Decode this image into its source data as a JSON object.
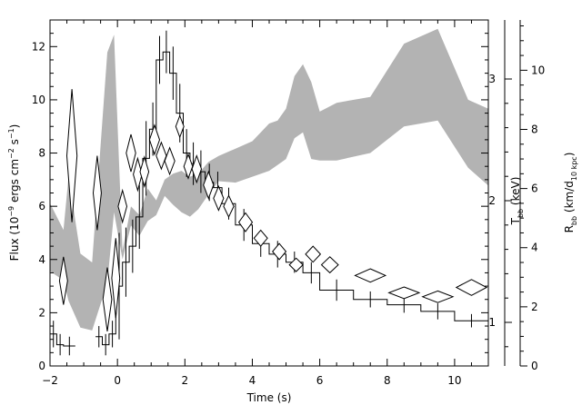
{
  "chart_data": {
    "type": "line",
    "title": "",
    "xlabel": "Time (s)",
    "xlim": [
      -2,
      11
    ],
    "axes": {
      "flux": {
        "label": "Flux (10-9 ergs cm-2 s-1)",
        "label_main": "Flux (10",
        "label_exp1": "−9",
        "label_mid": " ergs cm",
        "label_exp2": "−2",
        "label_s": " s",
        "label_exp3": "−1",
        "label_end": ")",
        "lim": [
          0,
          13
        ],
        "ticks": [
          "0",
          "2",
          "4",
          "6",
          "8",
          "10",
          "12"
        ]
      },
      "temperature": {
        "label": "Tbb (keV)",
        "label_main": "T",
        "label_sub": "bb",
        "label_end": " (keV)",
        "ticks": [
          "1",
          "2",
          "3"
        ]
      },
      "radius": {
        "label": "Rbb (km/d10 kpc)",
        "label_main": "R",
        "label_sub1": "bb",
        "label_mid": " (km/d",
        "label_sub2": "10 kpc",
        "label_end": ")",
        "lim": [
          0,
          11.7
        ],
        "ticks": [
          "0",
          "2",
          "4",
          "6",
          "8",
          "10"
        ]
      }
    },
    "x_ticks": [
      "−2",
      "0",
      "2",
      "4",
      "6",
      "8",
      "10"
    ],
    "series": [
      {
        "style": "histogram-with-error-bars",
        "axis": "flux",
        "points": [
          {
            "x0": -2.0,
            "x1": -1.8,
            "y": 1.2,
            "err": 0.5
          },
          {
            "x0": -1.8,
            "x1": -1.6,
            "y": 0.8,
            "err": 0.4
          },
          {
            "x0": -1.6,
            "x1": -1.25,
            "y": 0.75,
            "err": 0.35
          },
          {
            "x0": -0.65,
            "x1": -0.45,
            "y": 1.1,
            "err": 0.4
          },
          {
            "x0": -0.45,
            "x1": -0.25,
            "y": 0.8,
            "err": 0.4
          },
          {
            "x0": -0.25,
            "x1": -0.05,
            "y": 1.2,
            "err": 0.5
          },
          {
            "x0": -0.05,
            "x1": 0.15,
            "y": 3.0,
            "err": 2.0
          },
          {
            "x0": 0.15,
            "x1": 0.35,
            "y": 3.9,
            "err": 1.3
          },
          {
            "x0": 0.35,
            "x1": 0.55,
            "y": 4.5,
            "err": 1.0
          },
          {
            "x0": 0.55,
            "x1": 0.75,
            "y": 5.6,
            "err": 1.2
          },
          {
            "x0": 0.75,
            "x1": 0.95,
            "y": 7.8,
            "err": 1.4
          },
          {
            "x0": 0.95,
            "x1": 1.15,
            "y": 8.9,
            "err": 1.0
          },
          {
            "x0": 1.15,
            "x1": 1.35,
            "y": 11.5,
            "err": 0.9
          },
          {
            "x0": 1.35,
            "x1": 1.55,
            "y": 11.8,
            "err": 0.8
          },
          {
            "x0": 1.55,
            "x1": 1.75,
            "y": 11.0,
            "err": 1.0
          },
          {
            "x0": 1.75,
            "x1": 1.95,
            "y": 9.5,
            "err": 1.1
          },
          {
            "x0": 1.95,
            "x1": 2.15,
            "y": 8.0,
            "err": 0.9
          },
          {
            "x0": 2.15,
            "x1": 2.35,
            "y": 7.6,
            "err": 0.8
          },
          {
            "x0": 2.35,
            "x1": 2.6,
            "y": 7.3,
            "err": 0.8
          },
          {
            "x0": 2.6,
            "x1": 2.85,
            "y": 6.9,
            "err": 0.7
          },
          {
            "x0": 2.85,
            "x1": 3.1,
            "y": 6.7,
            "err": 0.6
          },
          {
            "x0": 3.1,
            "x1": 3.5,
            "y": 6.1,
            "err": 0.6
          },
          {
            "x0": 3.5,
            "x1": 4.0,
            "y": 5.3,
            "err": 0.6
          },
          {
            "x0": 4.0,
            "x1": 4.5,
            "y": 4.6,
            "err": 0.5
          },
          {
            "x0": 4.5,
            "x1": 5.0,
            "y": 4.2,
            "err": 0.5
          },
          {
            "x0": 5.0,
            "x1": 5.5,
            "y": 3.9,
            "err": 0.4
          },
          {
            "x0": 5.5,
            "x1": 6.0,
            "y": 3.5,
            "err": 0.4
          },
          {
            "x0": 6.0,
            "x1": 7.0,
            "y": 2.85,
            "err": 0.4
          },
          {
            "x0": 7.0,
            "x1": 8.0,
            "y": 2.5,
            "err": 0.3
          },
          {
            "x0": 8.0,
            "x1": 9.0,
            "y": 2.3,
            "err": 0.3
          },
          {
            "x0": 9.0,
            "x1": 10.0,
            "y": 2.05,
            "err": 0.3
          },
          {
            "x0": 10.0,
            "x1": 11.0,
            "y": 1.7,
            "err": 0.25
          }
        ]
      },
      {
        "style": "diamonds",
        "axis": "flux",
        "points": [
          {
            "x": -1.6,
            "y": 3.2,
            "dx": 0.12,
            "dy": 0.9
          },
          {
            "x": -1.35,
            "y": 7.9,
            "dx": 0.15,
            "dy": 2.5
          },
          {
            "x": -0.6,
            "y": 6.5,
            "dx": 0.12,
            "dy": 1.4
          },
          {
            "x": -0.3,
            "y": 2.5,
            "dx": 0.13,
            "dy": 1.2
          },
          {
            "x": -0.05,
            "y": 3.3,
            "dx": 0.12,
            "dy": 1.5
          },
          {
            "x": 0.15,
            "y": 6.0,
            "dx": 0.13,
            "dy": 0.6
          },
          {
            "x": 0.4,
            "y": 8.0,
            "dx": 0.14,
            "dy": 0.7
          },
          {
            "x": 0.6,
            "y": 7.2,
            "dx": 0.13,
            "dy": 0.6
          },
          {
            "x": 0.8,
            "y": 7.3,
            "dx": 0.13,
            "dy": 0.55
          },
          {
            "x": 1.1,
            "y": 8.5,
            "dx": 0.15,
            "dy": 0.55
          },
          {
            "x": 1.3,
            "y": 7.9,
            "dx": 0.15,
            "dy": 0.5
          },
          {
            "x": 1.55,
            "y": 7.7,
            "dx": 0.15,
            "dy": 0.5
          },
          {
            "x": 1.85,
            "y": 9.0,
            "dx": 0.12,
            "dy": 0.4
          },
          {
            "x": 2.1,
            "y": 7.5,
            "dx": 0.13,
            "dy": 0.45
          },
          {
            "x": 2.35,
            "y": 7.4,
            "dx": 0.14,
            "dy": 0.5
          },
          {
            "x": 2.7,
            "y": 6.8,
            "dx": 0.15,
            "dy": 0.5
          },
          {
            "x": 3.0,
            "y": 6.3,
            "dx": 0.15,
            "dy": 0.45
          },
          {
            "x": 3.3,
            "y": 6.0,
            "dx": 0.15,
            "dy": 0.4
          },
          {
            "x": 3.8,
            "y": 5.4,
            "dx": 0.2,
            "dy": 0.35
          },
          {
            "x": 4.25,
            "y": 4.8,
            "dx": 0.2,
            "dy": 0.3
          },
          {
            "x": 4.8,
            "y": 4.3,
            "dx": 0.2,
            "dy": 0.3
          },
          {
            "x": 5.3,
            "y": 3.8,
            "dx": 0.2,
            "dy": 0.25
          },
          {
            "x": 5.8,
            "y": 4.2,
            "dx": 0.22,
            "dy": 0.3
          },
          {
            "x": 6.3,
            "y": 3.8,
            "dx": 0.25,
            "dy": 0.3
          },
          {
            "x": 7.5,
            "y": 3.4,
            "dx": 0.45,
            "dy": 0.25
          },
          {
            "x": 8.5,
            "y": 2.75,
            "dx": 0.45,
            "dy": 0.22
          },
          {
            "x": 9.5,
            "y": 2.6,
            "dx": 0.45,
            "dy": 0.22
          },
          {
            "x": 10.5,
            "y": 2.95,
            "dx": 0.45,
            "dy": 0.3
          }
        ]
      },
      {
        "style": "shaded-band",
        "axis": "radius",
        "color": "#b3b3b3",
        "upper": [
          [
            -2.0,
            5.5
          ],
          [
            -1.6,
            4.6
          ],
          [
            -1.45,
            6.4
          ],
          [
            -1.1,
            3.8
          ],
          [
            -0.75,
            3.5
          ],
          [
            -0.3,
            10.6
          ],
          [
            -0.1,
            11.2
          ],
          [
            0.15,
            3.9
          ],
          [
            0.4,
            5.4
          ],
          [
            0.65,
            5.1
          ],
          [
            0.9,
            6.0
          ],
          [
            1.15,
            5.6
          ],
          [
            1.4,
            6.3
          ],
          [
            1.65,
            6.5
          ],
          [
            1.9,
            6.6
          ],
          [
            2.15,
            6.4
          ],
          [
            2.4,
            6.5
          ],
          [
            2.7,
            6.9
          ],
          [
            3.0,
            7.1
          ],
          [
            3.5,
            7.35
          ],
          [
            4.0,
            7.6
          ],
          [
            4.5,
            8.2
          ],
          [
            4.75,
            8.3
          ],
          [
            5.0,
            8.7
          ],
          [
            5.25,
            9.8
          ],
          [
            5.5,
            10.2
          ],
          [
            5.75,
            9.6
          ],
          [
            6.0,
            8.6
          ],
          [
            6.5,
            8.9
          ],
          [
            7.5,
            9.1
          ],
          [
            8.5,
            10.9
          ],
          [
            9.5,
            11.4
          ],
          [
            10.4,
            9.0
          ],
          [
            11.0,
            8.7
          ]
        ],
        "lower": [
          [
            11.0,
            6.1
          ],
          [
            10.4,
            6.7
          ],
          [
            9.5,
            8.3
          ],
          [
            8.5,
            8.1
          ],
          [
            7.5,
            7.2
          ],
          [
            6.5,
            6.95
          ],
          [
            6.0,
            6.95
          ],
          [
            5.75,
            7.0
          ],
          [
            5.5,
            7.9
          ],
          [
            5.25,
            7.7
          ],
          [
            5.0,
            7.0
          ],
          [
            4.75,
            6.8
          ],
          [
            4.5,
            6.6
          ],
          [
            4.0,
            6.4
          ],
          [
            3.5,
            6.2
          ],
          [
            3.0,
            6.25
          ],
          [
            2.7,
            5.8
          ],
          [
            2.4,
            5.3
          ],
          [
            2.15,
            5.05
          ],
          [
            1.9,
            5.2
          ],
          [
            1.65,
            5.45
          ],
          [
            1.4,
            5.75
          ],
          [
            1.15,
            5.1
          ],
          [
            0.9,
            4.9
          ],
          [
            0.65,
            4.4
          ],
          [
            0.4,
            4.75
          ],
          [
            0.15,
            3.6
          ],
          [
            -0.1,
            5.2
          ],
          [
            -0.3,
            2.8
          ],
          [
            -0.75,
            1.2
          ],
          [
            -1.1,
            1.3
          ],
          [
            -1.45,
            2.2
          ],
          [
            -1.6,
            2.9
          ],
          [
            -2.0,
            3.2
          ]
        ]
      }
    ]
  }
}
